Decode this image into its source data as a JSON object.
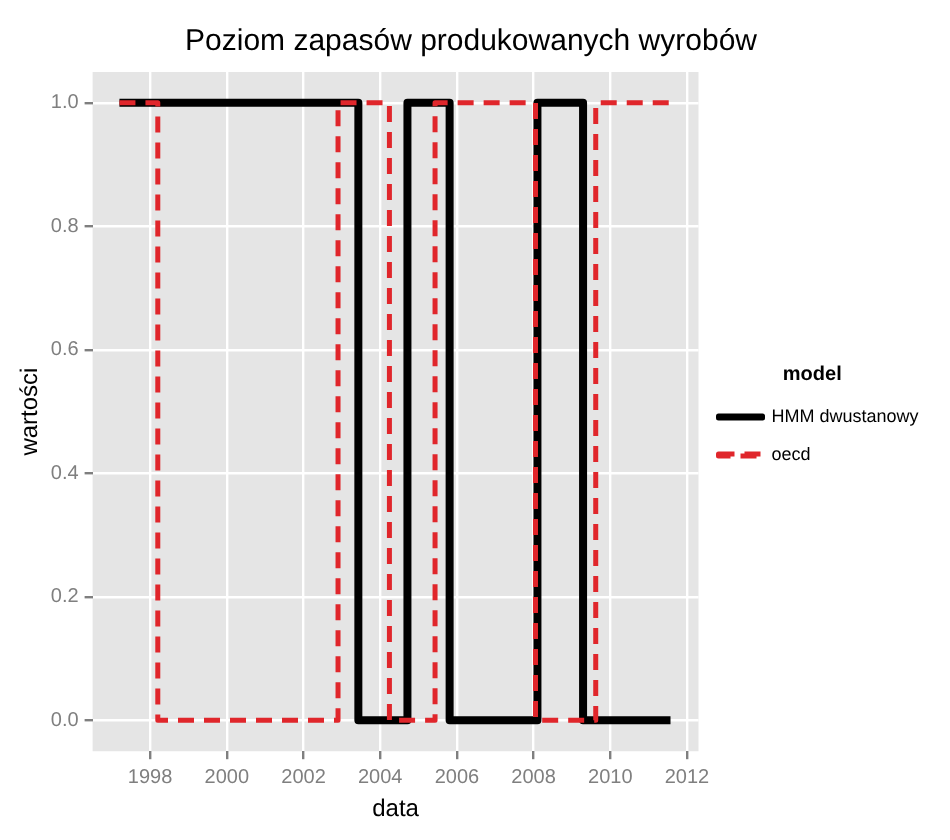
{
  "chart_data": {
    "type": "step",
    "title": "Poziom zapasów produkowanych wyrobów",
    "xlabel": "data",
    "ylabel": "wartości",
    "legend_title": "model",
    "legend": "right",
    "grid": true,
    "xlim": [
      1996.5,
      2012.3
    ],
    "xticks": [
      1998,
      2000,
      2002,
      2004,
      2006,
      2008,
      2010,
      2012
    ],
    "ylim": [
      -0.05,
      1.05
    ],
    "yticks": [
      {
        "value": 0,
        "label": "0.0"
      },
      {
        "value": 0.2,
        "label": "0.2"
      },
      {
        "value": 0.4,
        "label": "0.4"
      },
      {
        "value": 0.6,
        "label": "0.6"
      },
      {
        "value": 0.8,
        "label": "0.8"
      },
      {
        "value": 1,
        "label": "1.0"
      }
    ],
    "series": [
      {
        "name": "HMM dwustanowy",
        "color": "#000000",
        "line_style": "solid",
        "x": [
          1997.2,
          2003.43,
          2004.71,
          2005.81,
          2008.1,
          2009.29,
          2011.57
        ],
        "values": [
          1,
          0,
          1,
          0,
          1,
          0,
          0
        ]
      },
      {
        "name": "oecd",
        "color": "#e0262b",
        "line_style": "dashed",
        "x": [
          1997.2,
          1998.2,
          2002.9,
          2004.24,
          2005.43,
          2008.05,
          2009.62,
          2011.57
        ],
        "values": [
          1,
          0,
          1,
          0,
          1,
          0,
          1,
          1
        ]
      }
    ]
  }
}
